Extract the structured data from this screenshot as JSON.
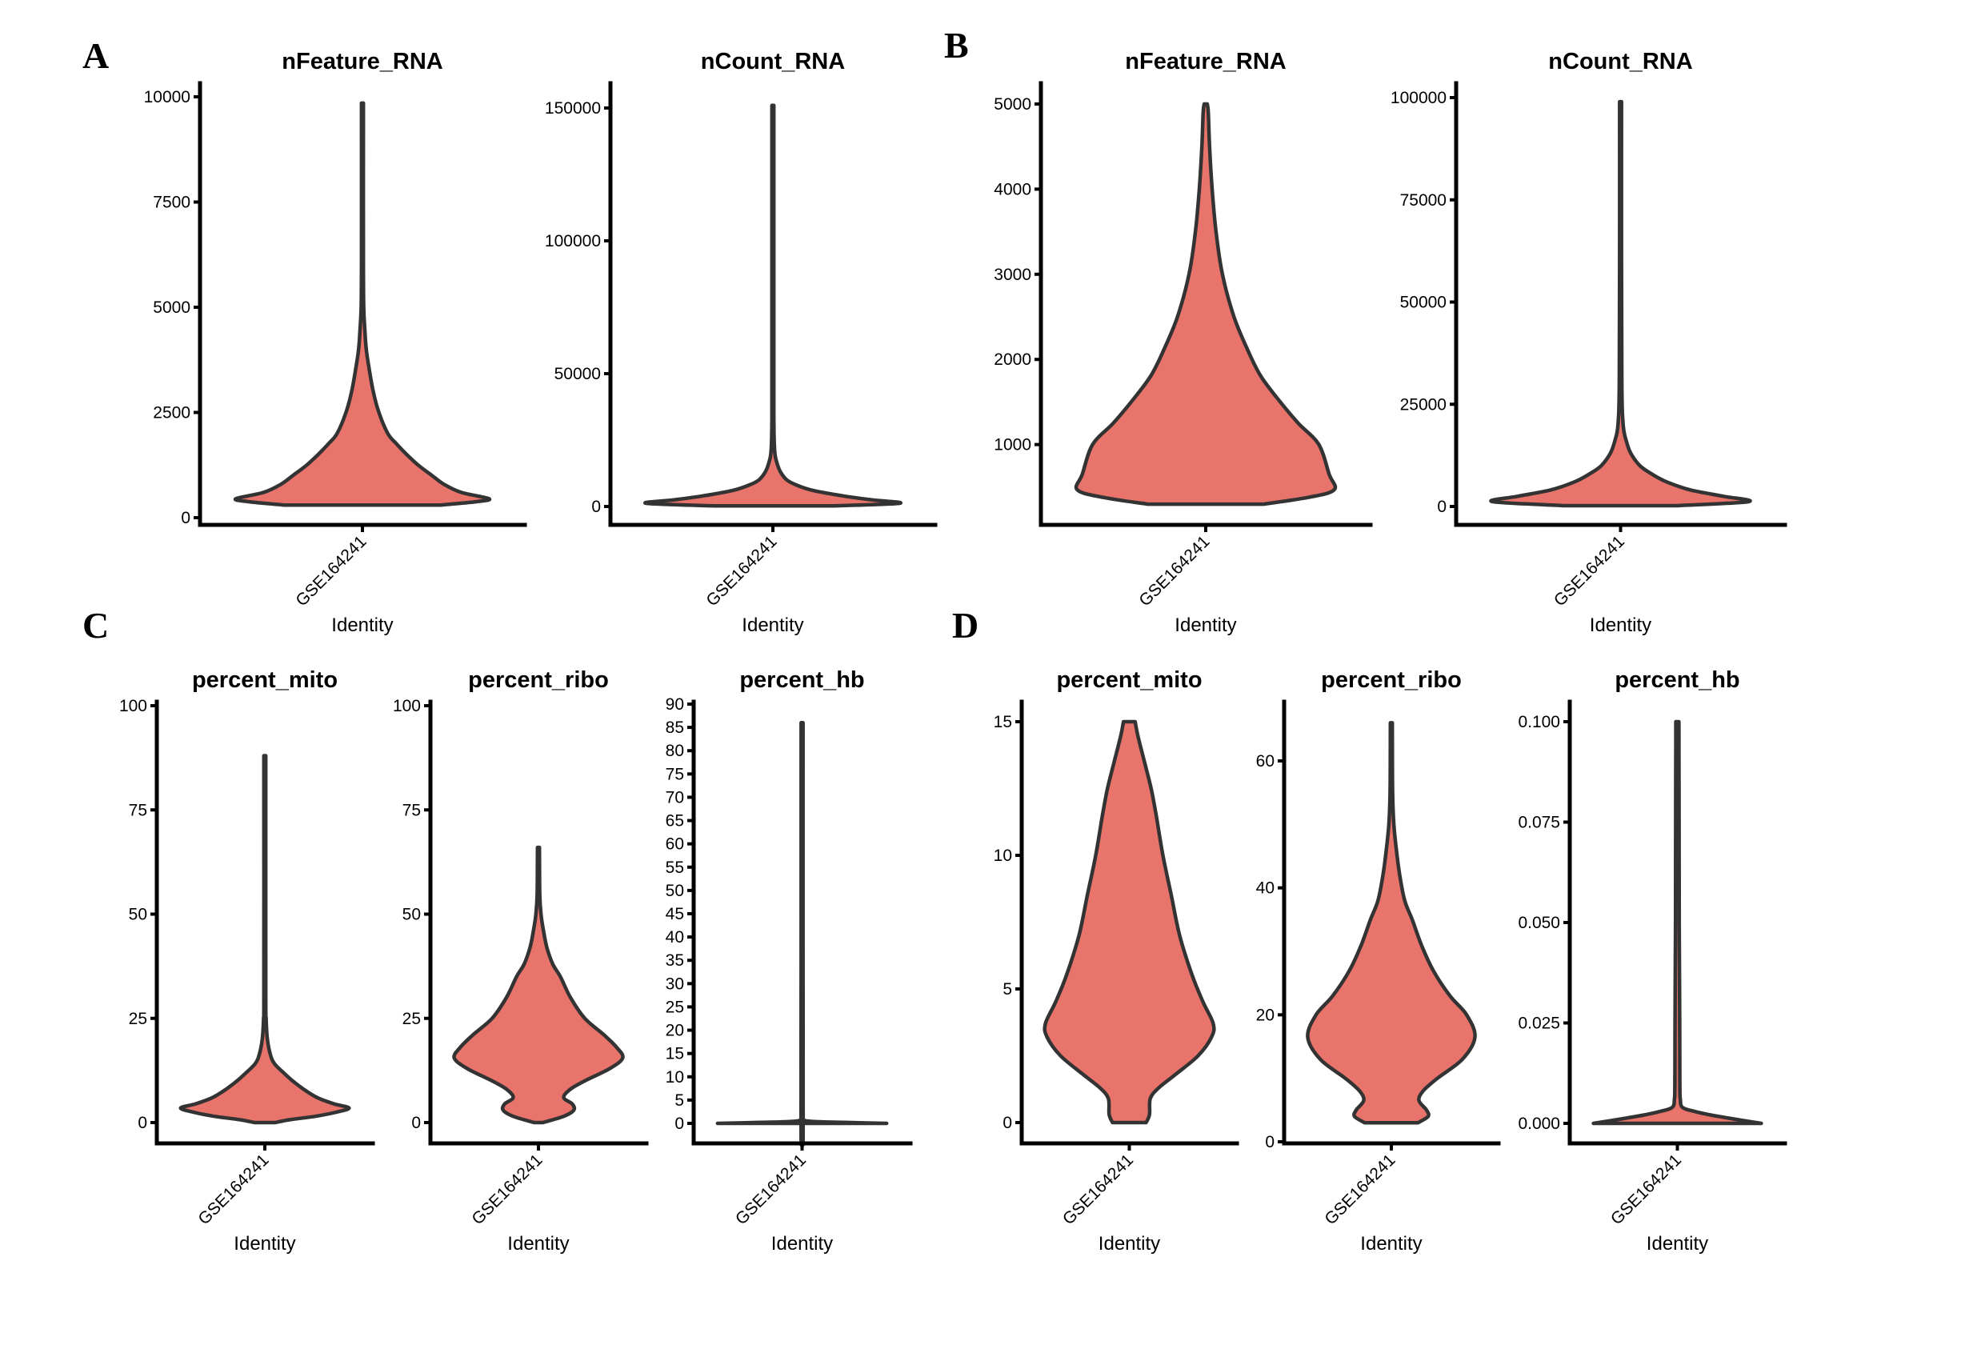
{
  "figure": {
    "fill_color": "#E9746C",
    "outline_color": "#333333",
    "axis_color": "#000000"
  },
  "chart_data": [
    {
      "id": "A1",
      "panel": "A",
      "type": "violin",
      "title": "nFeature_RNA",
      "xlabel": "Identity",
      "ylabel": "",
      "categories": [
        "GSE164241"
      ],
      "ylim": [
        0,
        10000
      ],
      "yticks": [
        0,
        2500,
        5000,
        7500,
        10000
      ],
      "ytick_labels": [
        "0",
        "2500",
        "5000",
        "7500",
        "10000"
      ],
      "range": [
        300,
        9850
      ],
      "density": [
        [
          300,
          0.62
        ],
        [
          380,
          0.9
        ],
        [
          450,
          1.0
        ],
        [
          600,
          0.78
        ],
        [
          800,
          0.64
        ],
        [
          1000,
          0.55
        ],
        [
          1250,
          0.44
        ],
        [
          1500,
          0.35
        ],
        [
          1750,
          0.27
        ],
        [
          2000,
          0.2
        ],
        [
          2500,
          0.13
        ],
        [
          3000,
          0.085
        ],
        [
          3500,
          0.055
        ],
        [
          4000,
          0.03
        ],
        [
          4500,
          0.018
        ],
        [
          5000,
          0.01
        ],
        [
          6000,
          0.006
        ],
        [
          9850,
          0.005
        ]
      ]
    },
    {
      "id": "A2",
      "panel": "A",
      "type": "violin",
      "title": "nCount_RNA",
      "xlabel": "Identity",
      "ylabel": "",
      "categories": [
        "GSE164241"
      ],
      "ylim": [
        0,
        150000
      ],
      "yticks": [
        0,
        50000,
        100000,
        150000
      ],
      "ytick_labels": [
        "0",
        "50000",
        "100000",
        "150000"
      ],
      "range": [
        200,
        151000
      ],
      "density": [
        [
          200,
          0.45
        ],
        [
          1200,
          1.0
        ],
        [
          2500,
          0.78
        ],
        [
          4000,
          0.55
        ],
        [
          6000,
          0.32
        ],
        [
          8000,
          0.19
        ],
        [
          10000,
          0.11
        ],
        [
          13000,
          0.06
        ],
        [
          16000,
          0.035
        ],
        [
          20000,
          0.016
        ],
        [
          30000,
          0.008
        ],
        [
          60000,
          0.006
        ],
        [
          151000,
          0.005
        ]
      ]
    },
    {
      "id": "B1",
      "panel": "B",
      "type": "violin",
      "title": "nFeature_RNA",
      "xlabel": "Identity",
      "ylabel": "",
      "categories": [
        "GSE164241"
      ],
      "ylim": [
        0,
        5000
      ],
      "yticks": [
        1000,
        2000,
        3000,
        4000,
        5000
      ],
      "ytick_labels": [
        "1000",
        "2000",
        "3000",
        "4000",
        "5000"
      ],
      "range": [
        300,
        5000
      ],
      "density": [
        [
          300,
          0.45
        ],
        [
          380,
          0.8
        ],
        [
          470,
          1.0
        ],
        [
          650,
          0.96
        ],
        [
          1000,
          0.88
        ],
        [
          1250,
          0.72
        ],
        [
          1500,
          0.58
        ],
        [
          1800,
          0.43
        ],
        [
          2100,
          0.33
        ],
        [
          2500,
          0.22
        ],
        [
          3000,
          0.13
        ],
        [
          3500,
          0.08
        ],
        [
          4000,
          0.05
        ],
        [
          4500,
          0.03
        ],
        [
          4900,
          0.02
        ],
        [
          5000,
          0.012
        ]
      ]
    },
    {
      "id": "B2",
      "panel": "B",
      "type": "violin",
      "title": "nCount_RNA",
      "xlabel": "Identity",
      "ylabel": "",
      "categories": [
        "GSE164241"
      ],
      "ylim": [
        0,
        100000
      ],
      "yticks": [
        0,
        25000,
        50000,
        75000,
        100000
      ],
      "ytick_labels": [
        "0",
        "25000",
        "50000",
        "75000",
        "100000"
      ],
      "range": [
        200,
        99000
      ],
      "density": [
        [
          200,
          0.45
        ],
        [
          1200,
          1.0
        ],
        [
          2500,
          0.8
        ],
        [
          4000,
          0.55
        ],
        [
          6000,
          0.36
        ],
        [
          8000,
          0.24
        ],
        [
          10000,
          0.15
        ],
        [
          13000,
          0.08
        ],
        [
          16000,
          0.045
        ],
        [
          20000,
          0.02
        ],
        [
          30000,
          0.01
        ],
        [
          60000,
          0.007
        ],
        [
          99000,
          0.005
        ]
      ]
    },
    {
      "id": "C1",
      "panel": "C",
      "type": "violin",
      "title": "percent_mito",
      "xlabel": "Identity",
      "ylabel": "",
      "categories": [
        "GSE164241"
      ],
      "ylim": [
        0,
        100
      ],
      "yticks": [
        0,
        25,
        50,
        75,
        100
      ],
      "ytick_labels": [
        "0",
        "25",
        "50",
        "75",
        "100"
      ],
      "range": [
        0,
        88
      ],
      "density": [
        [
          0,
          0.12
        ],
        [
          0.7,
          0.3
        ],
        [
          1.5,
          0.6
        ],
        [
          2.5,
          0.85
        ],
        [
          3.5,
          1.0
        ],
        [
          4.5,
          0.82
        ],
        [
          6,
          0.62
        ],
        [
          8,
          0.46
        ],
        [
          10,
          0.33
        ],
        [
          12,
          0.22
        ],
        [
          14,
          0.12
        ],
        [
          16,
          0.07
        ],
        [
          20,
          0.03
        ],
        [
          25,
          0.015
        ],
        [
          30,
          0.009
        ],
        [
          88,
          0.005
        ]
      ]
    },
    {
      "id": "C2",
      "panel": "C",
      "type": "violin",
      "title": "percent_ribo",
      "xlabel": "Identity",
      "ylabel": "",
      "categories": [
        "GSE164241"
      ],
      "ylim": [
        0,
        100
      ],
      "yticks": [
        0,
        25,
        50,
        75,
        100
      ],
      "ytick_labels": [
        "0",
        "25",
        "50",
        "75",
        "100"
      ],
      "range": [
        0,
        66
      ],
      "density": [
        [
          0,
          0.05
        ],
        [
          1.5,
          0.3
        ],
        [
          3,
          0.42
        ],
        [
          4.5,
          0.4
        ],
        [
          6,
          0.3
        ],
        [
          8,
          0.38
        ],
        [
          10,
          0.55
        ],
        [
          13,
          0.85
        ],
        [
          15.5,
          1.0
        ],
        [
          18,
          0.93
        ],
        [
          21,
          0.78
        ],
        [
          25,
          0.55
        ],
        [
          30,
          0.38
        ],
        [
          35,
          0.26
        ],
        [
          38,
          0.17
        ],
        [
          42,
          0.1
        ],
        [
          46,
          0.06
        ],
        [
          50,
          0.03
        ],
        [
          55,
          0.015
        ],
        [
          66,
          0.01
        ]
      ]
    },
    {
      "id": "C3",
      "panel": "C",
      "type": "violin",
      "title": "percent_hb",
      "xlabel": "Identity",
      "ylabel": "",
      "categories": [
        "GSE164241"
      ],
      "ylim": [
        0,
        90
      ],
      "yticks": [
        0,
        5,
        10,
        15,
        20,
        25,
        30,
        35,
        40,
        45,
        50,
        55,
        60,
        65,
        70,
        75,
        80,
        85,
        90
      ],
      "ytick_labels": [
        "0",
        "5",
        "10",
        "15",
        "20",
        "25",
        "30",
        "35",
        "40",
        "45",
        "50",
        "55",
        "60",
        "65",
        "70",
        "75",
        "80",
        "85",
        "90"
      ],
      "range": [
        0,
        86
      ],
      "density": [
        [
          0,
          1.0
        ],
        [
          0.2,
          0.5
        ],
        [
          0.4,
          0.15
        ],
        [
          0.7,
          0.02
        ],
        [
          2,
          0.012
        ],
        [
          86,
          0.01
        ]
      ]
    },
    {
      "id": "D1",
      "panel": "D",
      "type": "violin",
      "title": "percent_mito",
      "xlabel": "Identity",
      "ylabel": "",
      "categories": [
        "GSE164241"
      ],
      "ylim": [
        0,
        15
      ],
      "yticks": [
        0,
        5,
        10,
        15
      ],
      "ytick_labels": [
        "0",
        "5",
        "10",
        "15"
      ],
      "range": [
        0,
        15
      ],
      "density": [
        [
          0,
          0.2
        ],
        [
          0.3,
          0.24
        ],
        [
          0.9,
          0.25
        ],
        [
          1.3,
          0.35
        ],
        [
          1.8,
          0.55
        ],
        [
          2.5,
          0.82
        ],
        [
          3.2,
          0.98
        ],
        [
          3.7,
          1.0
        ],
        [
          4.5,
          0.88
        ],
        [
          5.5,
          0.75
        ],
        [
          7,
          0.6
        ],
        [
          8.5,
          0.5
        ],
        [
          10,
          0.4
        ],
        [
          11.5,
          0.32
        ],
        [
          12.5,
          0.26
        ],
        [
          13.5,
          0.18
        ],
        [
          14.5,
          0.1
        ],
        [
          15,
          0.07
        ]
      ]
    },
    {
      "id": "D2",
      "panel": "D",
      "type": "violin",
      "title": "percent_ribo",
      "xlabel": "Identity",
      "ylabel": "",
      "categories": [
        "GSE164241"
      ],
      "ylim": [
        0,
        68
      ],
      "yticks": [
        0,
        20,
        40,
        60
      ],
      "ytick_labels": [
        "0",
        "20",
        "40",
        "60"
      ],
      "range": [
        3,
        66
      ],
      "density": [
        [
          3,
          0.32
        ],
        [
          4,
          0.44
        ],
        [
          5,
          0.42
        ],
        [
          6.5,
          0.33
        ],
        [
          8,
          0.38
        ],
        [
          10,
          0.55
        ],
        [
          13,
          0.85
        ],
        [
          16.5,
          1.0
        ],
        [
          20,
          0.9
        ],
        [
          23,
          0.7
        ],
        [
          27,
          0.5
        ],
        [
          31,
          0.36
        ],
        [
          35,
          0.25
        ],
        [
          38,
          0.16
        ],
        [
          42,
          0.1
        ],
        [
          46,
          0.06
        ],
        [
          50,
          0.03
        ],
        [
          55,
          0.015
        ],
        [
          66,
          0.01
        ]
      ]
    },
    {
      "id": "D3",
      "panel": "D",
      "type": "violin",
      "title": "percent_hb",
      "xlabel": "Identity",
      "ylabel": "",
      "categories": [
        "GSE164241"
      ],
      "ylim": [
        0,
        0.1
      ],
      "yticks": [
        0,
        0.025,
        0.05,
        0.075,
        0.1
      ],
      "ytick_labels": [
        "0.000",
        "0.025",
        "0.050",
        "0.075",
        "0.100"
      ],
      "range": [
        0,
        0.1
      ],
      "density": [
        [
          0,
          1.0
        ],
        [
          0.001,
          0.7
        ],
        [
          0.002,
          0.42
        ],
        [
          0.003,
          0.2
        ],
        [
          0.004,
          0.06
        ],
        [
          0.006,
          0.035
        ],
        [
          0.01,
          0.03
        ],
        [
          0.03,
          0.027
        ],
        [
          0.05,
          0.022
        ],
        [
          0.08,
          0.02
        ],
        [
          0.1,
          0.018
        ]
      ]
    }
  ]
}
